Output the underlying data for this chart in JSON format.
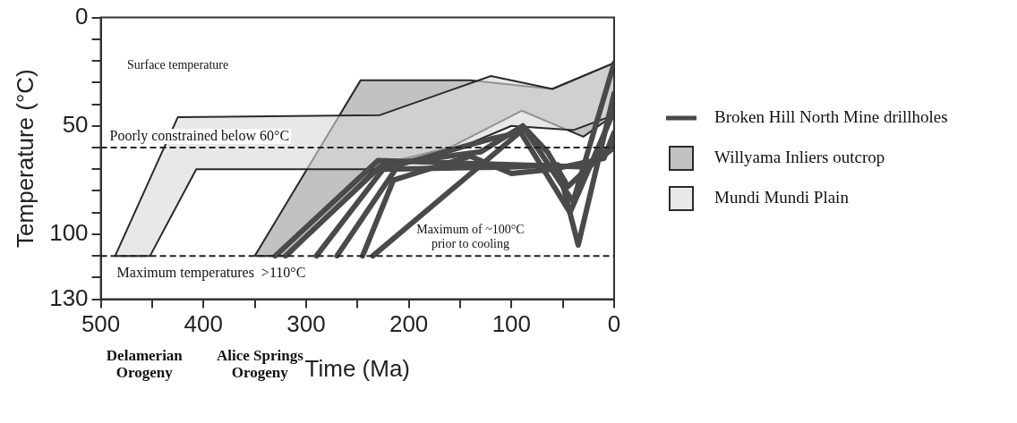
{
  "chart_data": {
    "type": "line",
    "xlabel": "Time (Ma)",
    "ylabel": "Temperature (°C)",
    "xlim": [
      500,
      0
    ],
    "xticks": [
      500,
      {
        "value": 450,
        "label": null
      },
      400,
      {
        "value": 350,
        "label": null
      },
      300,
      {
        "value": 250,
        "label": null
      },
      200,
      {
        "value": 150,
        "label": null
      },
      100,
      {
        "value": 50,
        "label": null
      },
      0
    ],
    "ylim": [
      130,
      0
    ],
    "yticks": [
      0,
      {
        "value": 10,
        "label": null
      },
      {
        "value": 20,
        "label": null
      },
      {
        "value": 30,
        "label": null
      },
      {
        "value": 40,
        "label": null
      },
      50,
      {
        "value": 60,
        "label": null
      },
      {
        "value": 70,
        "label": null
      },
      {
        "value": 80,
        "label": null
      },
      {
        "value": 90,
        "label": null
      },
      100,
      {
        "value": 110,
        "label": null
      },
      {
        "value": 120,
        "label": null
      },
      130
    ],
    "grid": false,
    "legend": "right",
    "marker": "none",
    "line_style": "solid",
    "series": [
      {
        "name": "Broken Hill North Mine drillholes",
        "type": "line",
        "color": "#4a4a4a",
        "x": [
          320,
          226,
          130,
          89,
          40,
          0
        ],
        "values": [
          110,
          68,
          62,
          50,
          85,
          21
        ]
      },
      {
        "type": "line",
        "color": "#4a4a4a",
        "x": [
          290,
          225,
          100,
          55,
          35,
          0
        ],
        "values": [
          110,
          70,
          69,
          68,
          105,
          35
        ]
      },
      {
        "type": "line",
        "color": "#4a4a4a",
        "x": [
          270,
          210,
          120,
          91,
          43,
          0
        ],
        "values": [
          110,
          68,
          56,
          53,
          90,
          43
        ]
      },
      {
        "type": "line",
        "color": "#4a4a4a",
        "x": [
          245,
          215,
          140,
          100,
          60,
          10,
          0
        ],
        "values": [
          110,
          75,
          64,
          72,
          70,
          65,
          53
        ]
      },
      {
        "type": "line",
        "color": "#4a4a4a",
        "x": [
          235,
          87,
          65,
          45,
          0
        ],
        "values": [
          110,
          51,
          62,
          78,
          58
        ]
      },
      {
        "type": "line",
        "color": "#4a4a4a",
        "x": [
          330,
          230,
          25,
          0
        ],
        "values": [
          110,
          66,
          69,
          60
        ]
      },
      {
        "name": "Willyama Inliers outcrop",
        "type": "area",
        "color": "#9a9a9a",
        "x": [
          350,
          247,
          140,
          61,
          0,
          0,
          30,
          90,
          160,
          230,
          317,
          350
        ],
        "values": [
          110,
          29,
          29,
          33,
          21,
          45,
          55,
          43,
          60,
          68,
          110,
          110
        ]
      },
      {
        "name": "Mundi Mundi Plain",
        "type": "area",
        "color": "#d8d8d8",
        "x": [
          486,
          425,
          228,
          120,
          60,
          0,
          0,
          40,
          100,
          150,
          230,
          407,
          452,
          486
        ],
        "values": [
          110,
          46,
          45,
          27,
          33,
          21,
          45,
          52,
          50,
          60,
          70,
          70,
          110,
          110
        ]
      }
    ],
    "ref_lines": [
      {
        "axis": "y",
        "value": 60,
        "label": "Poorly constrained below 60°C",
        "line_style": "dashed",
        "color": "#222222"
      },
      {
        "axis": "y",
        "value": 110,
        "label": "Maximum temperatures  >110°C",
        "line_style": "dashed",
        "color": "#222222"
      }
    ],
    "annotations": [
      "Surface temperature",
      "Maximum of ~100°C\nprior to cooling",
      "Delamerian\nOrogeny",
      "Alice Springs\nOrogeny"
    ]
  }
}
